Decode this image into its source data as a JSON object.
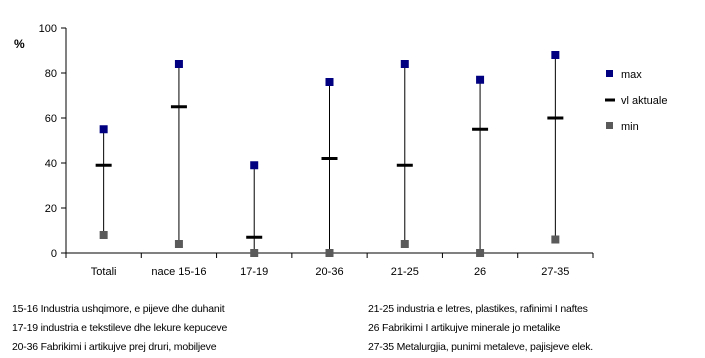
{
  "chart_data": {
    "type": "scatter",
    "ylabel": "%",
    "ylim": [
      0,
      100
    ],
    "yticks": [
      0,
      20,
      40,
      60,
      80,
      100
    ],
    "categories": [
      "Totali",
      "nace 15-16",
      "17-19",
      "20-36",
      "21-25",
      "26",
      "27-35"
    ],
    "series": [
      {
        "name": "max",
        "values": [
          55,
          84,
          39,
          76,
          84,
          77,
          88
        ],
        "color": "#000080",
        "marker": "square"
      },
      {
        "name": "vl aktuale",
        "values": [
          39,
          65,
          7,
          42,
          39,
          55,
          60
        ],
        "color": "#000000",
        "marker": "dash"
      },
      {
        "name": "min",
        "values": [
          8,
          4,
          0,
          0,
          4,
          0,
          6
        ],
        "color": "#5a5a5a",
        "marker": "square"
      }
    ],
    "legend": "right",
    "grid": false
  },
  "notes_left": [
    "15-16 Industria ushqimore, e pijeve dhe duhanit",
    "17-19 industria e tekstileve dhe lekure kepuceve",
    "20-36 Fabrikimi i artikujve prej druri, mobiljeve"
  ],
  "notes_right": [
    "21-25 industria e letres, plastikes, rafinimi I naftes",
    "26 Fabrikimi I artikujve minerale jo metalike",
    "27-35 Metalurgjia, punimi metaleve, pajisjeve elek."
  ]
}
